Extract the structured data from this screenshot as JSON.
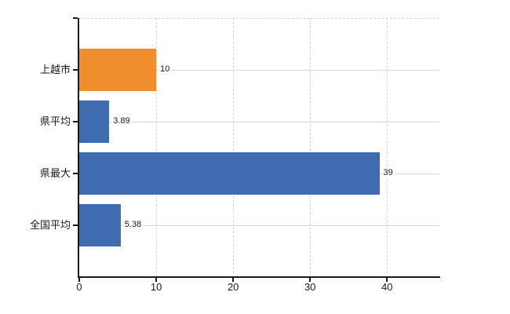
{
  "chart_data": {
    "type": "bar",
    "orientation": "horizontal",
    "title": "",
    "xlabel": "",
    "ylabel": "",
    "categories": [
      "上越市",
      "県平均",
      "県最大",
      "全国平均"
    ],
    "values": [
      10,
      3.89,
      39,
      5.38
    ],
    "value_labels": [
      "10",
      "3.89",
      "39",
      "5.38"
    ],
    "bar_colors": [
      "#f08e2d",
      "#3f6cb0",
      "#3f6cb0",
      "#3f6cb0"
    ],
    "x_ticks": [
      0,
      10,
      20,
      30,
      40
    ],
    "x_tick_labels": [
      "0",
      "10",
      "20",
      "30",
      "40"
    ],
    "xlim": [
      0,
      46.8
    ],
    "grid": true,
    "legend": false,
    "colors": {
      "highlight_bar": "#f08e2d",
      "default_bar": "#3f6cb0",
      "grid_vertical": "#d4d4d4",
      "grid_horizontal": "#d8d8d8",
      "axis": "#1a1a1a",
      "text": "#1a1a1a",
      "background": "#ffffff"
    }
  }
}
